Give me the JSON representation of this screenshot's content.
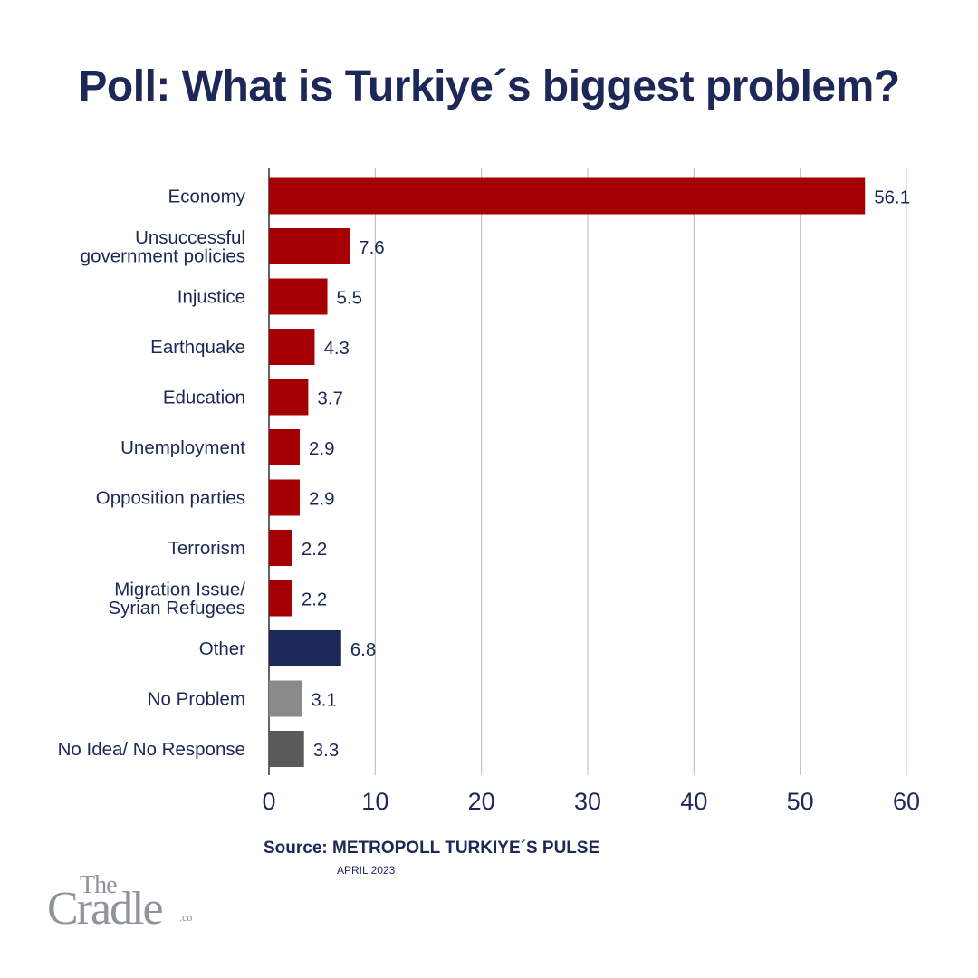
{
  "chart_data": {
    "type": "bar",
    "orientation": "horizontal",
    "title": "Poll: What is Turkiye´s biggest problem?",
    "categories": [
      "Economy",
      "Unsuccessful\ngovernment policies",
      "Injustice",
      "Earthquake",
      "Education",
      "Unemployment",
      "Opposition parties",
      "Terrorism",
      "Migration Issue/\nSyrian Refugees",
      "Other",
      "No Problem",
      "No Idea/ No Response"
    ],
    "values": [
      56.1,
      7.6,
      5.5,
      4.3,
      3.7,
      2.9,
      2.9,
      2.2,
      2.2,
      6.8,
      3.1,
      3.3
    ],
    "value_labels": [
      "56.1",
      "7.6",
      "5.5",
      "4.3",
      "3.7",
      "2.9",
      "2.9",
      "2.2",
      "2.2",
      "6.8",
      "3.1",
      "3.3"
    ],
    "bar_colors": [
      "#a50004",
      "#a50004",
      "#a50004",
      "#a50004",
      "#a50004",
      "#a50004",
      "#a50004",
      "#a50004",
      "#a50004",
      "#1d2858",
      "#8a8a8a",
      "#5a5a5a"
    ],
    "xlim": [
      0,
      60
    ],
    "xticks": [
      0,
      10,
      20,
      30,
      40,
      50,
      60
    ],
    "grid": true,
    "xlabel": "",
    "ylabel": ""
  },
  "footer": {
    "source": "Source: METROPOLL TURKIYE´S PULSE",
    "date": "APRIL 2023"
  },
  "logo": {
    "the": "The",
    "cradle": "Cradle",
    "co": ".co"
  },
  "colors": {
    "title": "#1d2858",
    "text": "#1d2858",
    "grid": "#b9b9b9"
  }
}
